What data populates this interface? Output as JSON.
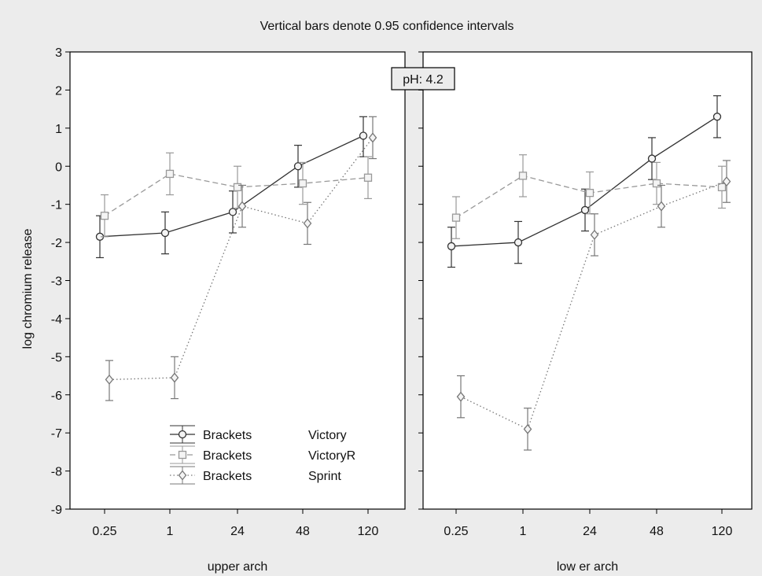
{
  "chart_data": {
    "type": "line",
    "title": "Vertical bars denote 0.95 confidence intervals",
    "annotation": "pH: 4.2",
    "ylabel": "log chromium release",
    "ylim": [
      -9,
      3
    ],
    "y_ticks": [
      "3",
      "2",
      "1",
      "0",
      "-1",
      "-2",
      "-3",
      "-4",
      "-5",
      "-6",
      "-7",
      "-8",
      "-9"
    ],
    "categories": [
      "0.25",
      "1",
      "24",
      "48",
      "120"
    ],
    "grid": false,
    "legend_position": "bottom-left of left panel",
    "legend": [
      {
        "col1": "Brackets",
        "col2": "Victory"
      },
      {
        "col1": "Brackets",
        "col2": "VictoryR"
      },
      {
        "col1": "Brackets",
        "col2": "Sprint"
      }
    ],
    "panels": [
      {
        "xlabel": "upper arch",
        "series": [
          {
            "legend_index": 0,
            "marker": "circle",
            "line": "solid",
            "color": "#333333",
            "values": [
              -1.85,
              -1.75,
              -1.2,
              0.0,
              0.8
            ],
            "ci": [
              [
                -2.4,
                -1.3
              ],
              [
                -2.3,
                -1.2
              ],
              [
                -1.75,
                -0.65
              ],
              [
                -0.55,
                0.55
              ],
              [
                0.25,
                1.3
              ]
            ]
          },
          {
            "legend_index": 1,
            "marker": "square",
            "line": "dashed",
            "color": "#999999",
            "values": [
              -1.3,
              -0.2,
              -0.55,
              -0.45,
              -0.3
            ],
            "ci": [
              [
                -1.85,
                -0.75
              ],
              [
                -0.75,
                0.35
              ],
              [
                -1.1,
                0.0
              ],
              [
                -1.0,
                0.1
              ],
              [
                -0.85,
                0.25
              ]
            ]
          },
          {
            "legend_index": 2,
            "marker": "diamond",
            "line": "dotted",
            "color": "#777777",
            "values": [
              -5.6,
              -5.55,
              -1.05,
              -1.5,
              0.75
            ],
            "ci": [
              [
                -6.15,
                -5.1
              ],
              [
                -6.1,
                -5.0
              ],
              [
                -1.6,
                -0.5
              ],
              [
                -2.05,
                -0.95
              ],
              [
                0.2,
                1.3
              ]
            ]
          }
        ]
      },
      {
        "xlabel": "low er arch",
        "series": [
          {
            "legend_index": 0,
            "marker": "circle",
            "line": "solid",
            "color": "#333333",
            "values": [
              -2.1,
              -2.0,
              -1.15,
              0.2,
              1.3
            ],
            "ci": [
              [
                -2.65,
                -1.6
              ],
              [
                -2.55,
                -1.45
              ],
              [
                -1.7,
                -0.6
              ],
              [
                -0.35,
                0.75
              ],
              [
                0.75,
                1.85
              ]
            ]
          },
          {
            "legend_index": 1,
            "marker": "square",
            "line": "dashed",
            "color": "#999999",
            "values": [
              -1.35,
              -0.25,
              -0.7,
              -0.45,
              -0.55
            ],
            "ci": [
              [
                -1.9,
                -0.8
              ],
              [
                -0.8,
                0.3
              ],
              [
                -1.25,
                -0.15
              ],
              [
                -1.0,
                0.1
              ],
              [
                -1.1,
                0.0
              ]
            ]
          },
          {
            "legend_index": 2,
            "marker": "diamond",
            "line": "dotted",
            "color": "#777777",
            "values": [
              -6.05,
              -6.9,
              -1.8,
              -1.05,
              -0.4
            ],
            "ci": [
              [
                -6.6,
                -5.5
              ],
              [
                -7.45,
                -6.35
              ],
              [
                -2.35,
                -1.25
              ],
              [
                -1.6,
                -0.5
              ],
              [
                -0.95,
                0.15
              ]
            ]
          }
        ]
      }
    ]
  }
}
